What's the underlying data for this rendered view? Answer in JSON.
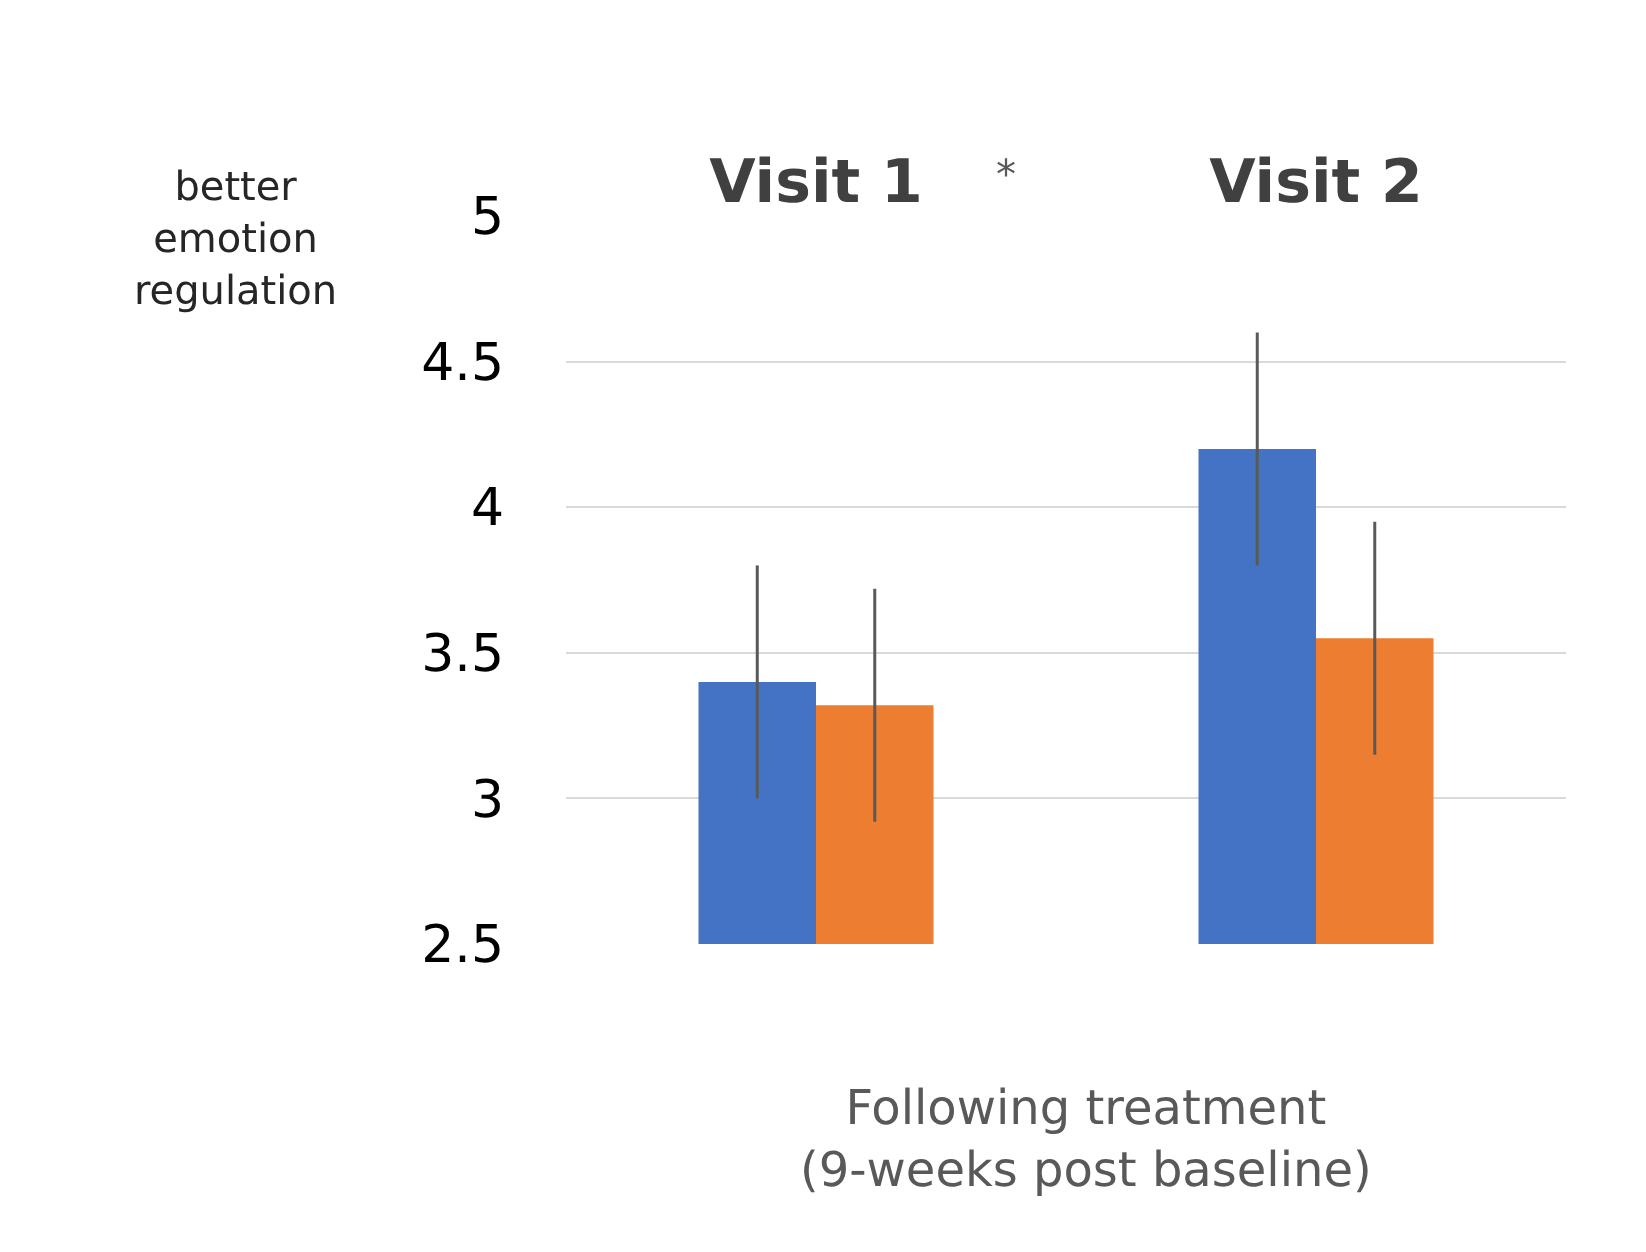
{
  "chart_data": {
    "type": "bar",
    "categories": [
      "Visit 1",
      "Visit 2"
    ],
    "series": [
      {
        "color": "#4472c4",
        "values": [
          3.4,
          4.2
        ],
        "errors": [
          0.4,
          0.4
        ]
      },
      {
        "color": "#ed7d31",
        "values": [
          3.32,
          3.55
        ],
        "errors": [
          0.4,
          0.4
        ]
      }
    ],
    "ylim": [
      2.5,
      5
    ],
    "yticks": [
      2.5,
      3,
      3.5,
      4,
      4.5,
      5
    ],
    "grid": "y",
    "annotations": [
      "*",
      "better\nemotion\nregulation",
      "Following treatment\n(9-weeks post baseline)"
    ]
  }
}
